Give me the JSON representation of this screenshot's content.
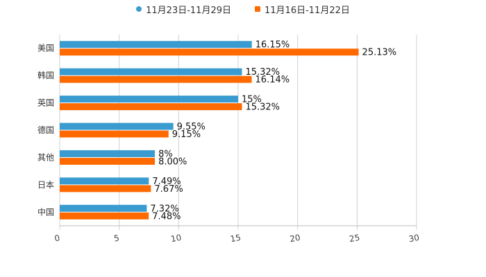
{
  "chart_data": {
    "type": "bar",
    "orientation": "horizontal",
    "categories": [
      "美国",
      "韩国",
      "英国",
      "德国",
      "其他",
      "日本",
      "中国"
    ],
    "series": [
      {
        "name": "11月23日-11月29日",
        "color": "#3a9bd0",
        "values": [
          16.15,
          15.32,
          15,
          9.55,
          8,
          7.49,
          7.32
        ],
        "labels": [
          "16.15%",
          "15.32%",
          "15%",
          "9.55%",
          "8%",
          "7.49%",
          "7.32%"
        ]
      },
      {
        "name": "11月16日-11月22日",
        "color": "#ff6a00",
        "values": [
          25.13,
          16.14,
          15.32,
          9.15,
          8.0,
          7.67,
          7.48
        ],
        "labels": [
          "25.13%",
          "16.14%",
          "15.32%",
          "9.15%",
          "8.00%",
          "7.67%",
          "7.48%"
        ]
      }
    ],
    "xlim": [
      0,
      30
    ],
    "xticks": [
      0,
      5,
      10,
      15,
      20,
      25,
      30
    ],
    "xtick_labels": [
      "0",
      "5",
      "10",
      "15",
      "20",
      "25",
      "30"
    ],
    "grid": true,
    "legend_position": "top-center"
  }
}
